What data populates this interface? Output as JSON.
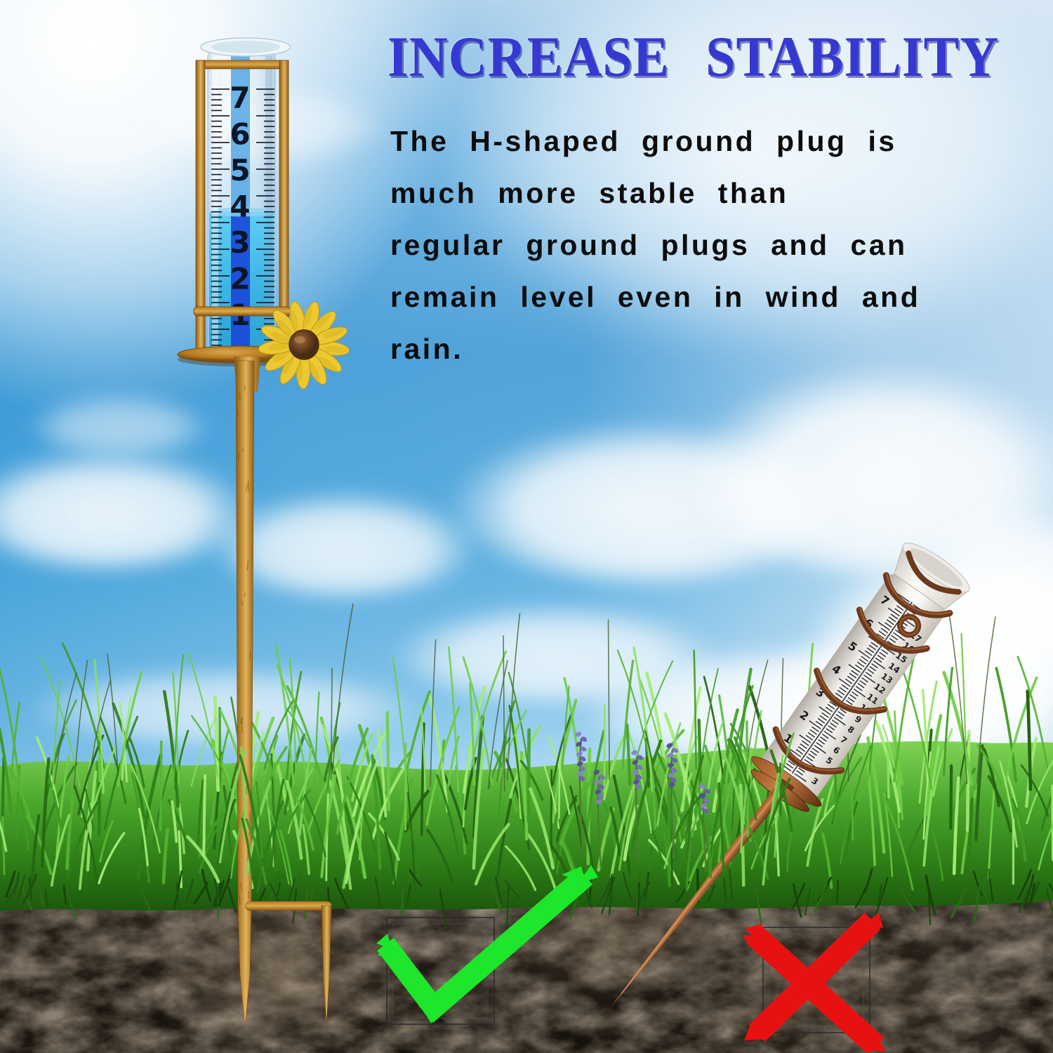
{
  "title": "INCREASE STABILITY",
  "body": {
    "lines": [
      "The H-shaped ground plug is",
      "much more stable than",
      "regular ground plugs and can",
      "remain level even in wind and",
      "rain."
    ]
  },
  "left_gauge": {
    "scale_numbers": [
      "7",
      "6",
      "5",
      "4",
      "3",
      "2",
      "1"
    ]
  },
  "right_gauge": {
    "inch_scale_numbers": [
      "7",
      "6",
      "5",
      "4",
      "3",
      "2",
      "1"
    ],
    "cm_scale_numbers": [
      "17",
      "16",
      "15",
      "14",
      "13",
      "12",
      "11",
      "10",
      "9",
      "8",
      "7",
      "6",
      "5",
      "4",
      "3"
    ]
  },
  "verdict": {
    "good_symbol": "checkmark",
    "bad_symbol": "cross"
  },
  "colors": {
    "title_blue": "#3539d2",
    "body_text_black": "#0c0c0c",
    "check_green": "#1ee62a",
    "cross_red": "#e81111",
    "frame_rust": "#c08938",
    "copper_stake": "#7a3f1e",
    "water_blue": "#3cc0ee",
    "stripe_blue": "#1a47d8",
    "grass_green": "#4aa52c",
    "soil_brown": "#231d16",
    "sky_blue": "#54a4da"
  }
}
